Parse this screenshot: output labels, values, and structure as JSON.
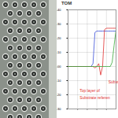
{
  "chart_data": {
    "type": "line",
    "title": "TOM",
    "x": [
      0,
      5,
      10,
      15,
      20,
      24,
      26,
      28,
      30,
      32,
      34,
      36,
      38,
      40,
      42,
      44,
      46,
      48,
      50
    ],
    "series": [
      {
        "color": "#3b4fd8",
        "values": [
          0,
          0,
          0,
          0,
          0,
          0,
          0.02,
          0.24,
          0.25,
          0.25,
          0.25,
          0.25,
          0.25,
          0.25,
          0.25,
          0.25,
          0.25,
          0.25,
          0.25
        ]
      },
      {
        "color": "#e03030",
        "values": [
          0,
          0,
          0,
          0,
          0,
          0,
          0,
          -0.01,
          0,
          0.02,
          -0.06,
          0,
          0.26,
          0.27,
          0.27,
          0.27,
          0.27,
          0.27,
          0.27
        ]
      },
      {
        "color": "#3aa83a",
        "values": [
          0,
          0,
          0,
          0,
          0,
          0,
          0,
          0,
          0,
          0,
          0,
          0,
          0,
          0,
          0,
          0,
          0.03,
          0.15,
          0.26
        ]
      }
    ],
    "xlim": [
      0,
      50
    ],
    "xticks": [
      {
        "value": 10,
        "label": "10.000"
      },
      {
        "value": 20,
        "label": "20.000"
      },
      {
        "value": 30,
        "label": "30.000"
      },
      {
        "value": 40,
        "label": "40.000"
      }
    ],
    "ylim": [
      -0.3,
      0.4
    ],
    "yticks": [
      {
        "value": -0.3,
        "label": "-0.30"
      },
      {
        "value": -0.2,
        "label": "-0.20"
      },
      {
        "value": -0.1,
        "label": "-0.10"
      },
      {
        "value": 0,
        "label": "0.00"
      },
      {
        "value": 0.1,
        "label": "0.10"
      },
      {
        "value": 0.2,
        "label": "0.20"
      },
      {
        "value": 0.3,
        "label": "0.30"
      },
      {
        "value": 0.4,
        "label": "0.40"
      }
    ],
    "grid": true,
    "annotations": [
      {
        "text": "Subst",
        "x": 42,
        "y": -0.11,
        "color": "#e03030"
      },
      {
        "text": "Top layer of",
        "x": 12,
        "y": -0.17,
        "color": "#e03030"
      },
      {
        "text": "Substrate referen",
        "x": 12,
        "y": -0.22,
        "color": "#e03030"
      }
    ]
  }
}
